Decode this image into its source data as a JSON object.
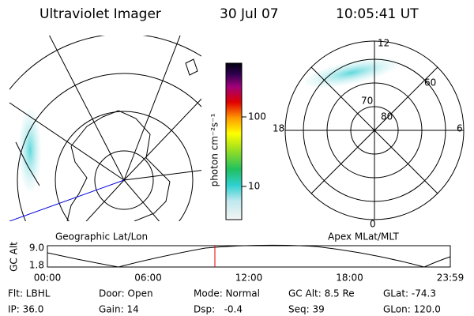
{
  "header": {
    "title": "Ultraviolet Imager",
    "date": "30 Jul 07",
    "time": "10:05:41 UT"
  },
  "left_map": {
    "caption": "Geographic Lat/Lon"
  },
  "colorbar": {
    "label": "photon cm⁻²s⁻¹",
    "ticks": [
      "100",
      "10"
    ]
  },
  "right_map": {
    "caption": "Apex MLat/MLT",
    "mlt_labels": [
      "12",
      "18",
      "6",
      "0"
    ],
    "lat_labels": [
      "80",
      "70",
      "60"
    ]
  },
  "altitude_panel": {
    "axis_label": "GC Alt",
    "y_labels": [
      "9.0",
      "1.8"
    ],
    "x_labels": [
      "00:00",
      "06:00",
      "12:00",
      "18:00",
      "23:59"
    ]
  },
  "info": {
    "rows": [
      [
        "Flt: LBHL",
        "Door: Open",
        "Mode: Normal",
        "GC Alt: 8.5 Re",
        "GLat: -74.3"
      ],
      [
        "IP: 36.0",
        "Gain: 14",
        "Dsp:   -0.4",
        "Seq: 39",
        "GLon: 120.0"
      ]
    ]
  }
}
